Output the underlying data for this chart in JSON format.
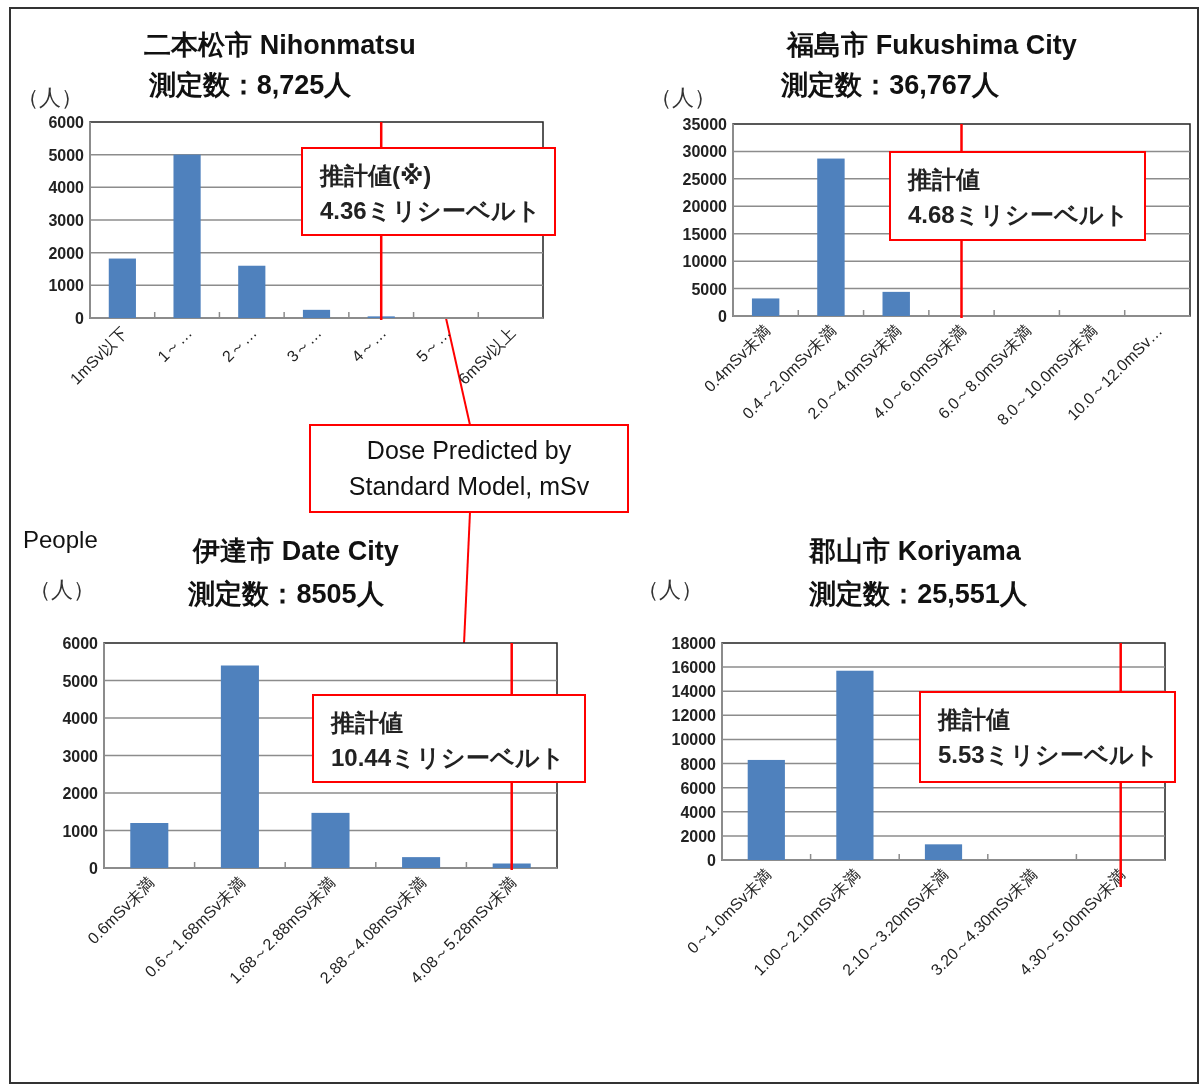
{
  "chart_data": [
    {
      "type": "bar",
      "title": "二本松市  Nihonmatsu",
      "subtitle": "測定数：8,725人",
      "ylabel": "（人）",
      "categories": [
        "1mSv以下",
        "1～…",
        "2～…",
        "3～…",
        "4～…",
        "5～…",
        "6mSv以上"
      ],
      "values": [
        1820,
        5000,
        1600,
        250,
        50,
        0,
        0
      ],
      "color": "#4f81bd",
      "ylim": [
        0,
        6000
      ],
      "yticks": [
        0,
        1000,
        2000,
        3000,
        4000,
        5000,
        6000
      ],
      "grid": "y",
      "ref_lines": [
        {
          "axis": "x",
          "value": "4～…",
          "label": "推計値(※)\n4.36ミリシーベルト",
          "color": "#ff0000"
        }
      ]
    },
    {
      "type": "bar",
      "title": "福島市    Fukushima City",
      "subtitle": "測定数：36,767人",
      "ylabel": "（人）",
      "categories": [
        "0.4mSv未満",
        "0.4～2.0mSv未満",
        "2.0～4.0mSv未満",
        "4.0～6.0mSv未満",
        "6.0～8.0mSv未満",
        "8.0～10.0mSv未満",
        "10.0～12.0mSv…"
      ],
      "values": [
        3200,
        28700,
        4400,
        0,
        0,
        0,
        0
      ],
      "color": "#4f81bd",
      "ylim": [
        0,
        35000
      ],
      "yticks": [
        0,
        5000,
        10000,
        15000,
        20000,
        25000,
        30000,
        35000
      ],
      "grid": "y",
      "ref_lines": [
        {
          "axis": "x",
          "value": "4.0～6.0mSv未満",
          "label": "推計値\n4.68ミリシーベルト",
          "color": "#ff0000"
        }
      ]
    },
    {
      "type": "other",
      "annotations": [
        "Dose Predicted by Standard Model, mSv",
        "People"
      ]
    },
    {
      "type": "bar",
      "title": "伊達市    Date City",
      "subtitle": "測定数：8505人",
      "ylabel": "（人）",
      "categories": [
        "0.6mSv未満",
        "0.6～1.68mSv未満",
        "1.68～2.88mSv未満",
        "2.88～4.08mSv未満",
        "4.08～5.28mSv未満"
      ],
      "values": [
        1200,
        5400,
        1470,
        290,
        120
      ],
      "color": "#4f81bd",
      "ylim": [
        0,
        6000
      ],
      "yticks": [
        0,
        1000,
        2000,
        3000,
        4000,
        5000,
        6000
      ],
      "grid": "y",
      "ref_lines": [
        {
          "axis": "x",
          "value": "4.08～5.28mSv未満",
          "label": "推計値\n10.44ミリシーベルト",
          "color": "#ff0000"
        }
      ]
    },
    {
      "type": "bar",
      "title": "郡山市   Koriyama",
      "subtitle": "測定数：25,551人",
      "ylabel": "（人）",
      "categories": [
        "0～1.0mSv未満",
        "1.00～2.10mSv未満",
        "2.10～3.20mSv未満",
        "3.20～4.30mSv未満",
        "4.30～5.00mSv未満"
      ],
      "values": [
        8300,
        15700,
        1300,
        0,
        0
      ],
      "color": "#4f81bd",
      "ylim": [
        0,
        18000
      ],
      "yticks": [
        0,
        2000,
        4000,
        6000,
        8000,
        10000,
        12000,
        14000,
        16000,
        18000
      ],
      "grid": "y",
      "ref_lines": [
        {
          "axis": "x",
          "value": "4.30～5.00mSv未満",
          "label": "推計値\n5.53ミリシーベルト",
          "color": "#ff0000"
        }
      ]
    }
  ]
}
